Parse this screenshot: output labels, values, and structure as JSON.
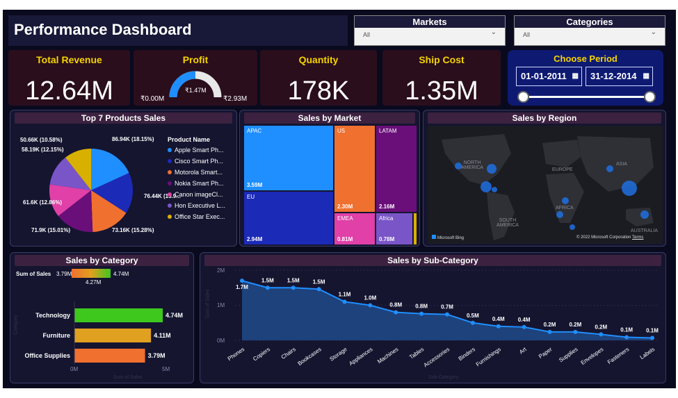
{
  "title": "Performance Dashboard",
  "slicers": {
    "markets": {
      "label": "Markets",
      "value": "All"
    },
    "categories": {
      "label": "Categories",
      "value": "All"
    }
  },
  "kpis": {
    "revenue": {
      "label": "Total Revenue",
      "value": "12.64M"
    },
    "profit": {
      "label": "Profit",
      "min": "₹0.00M",
      "value": "₹1.47M",
      "max": "₹2.93M",
      "fraction": 0.5
    },
    "quantity": {
      "label": "Quantity",
      "value": "178K"
    },
    "shipcost": {
      "label": "Ship Cost",
      "value": "1.35M"
    }
  },
  "period": {
    "label": "Choose Period",
    "start": "01-01-2011",
    "end": "31-12-2014"
  },
  "colors": {
    "accent": "#f5d400",
    "blue": "#1f8fff",
    "navy": "#1c2ab8",
    "orange": "#f07030",
    "purple": "#6a0f7a",
    "pink": "#e040a8",
    "violet": "#7a55c8",
    "gold": "#d8b000"
  },
  "top_products": {
    "title": "Top 7 Products Sales",
    "legend_title": "Product Name",
    "items": [
      {
        "name": "Apple Smart Ph...",
        "value": 86.94,
        "label": "86.94K (18.15%)",
        "color": "#1f8fff"
      },
      {
        "name": "Cisco Smart Ph...",
        "value": 76.44,
        "label": "76.44K (15.9...",
        "color": "#1c2ab8"
      },
      {
        "name": "Motorola Smart...",
        "value": 73.16,
        "label": "73.16K (15.28%)",
        "color": "#f07030"
      },
      {
        "name": "Nokia Smart Ph...",
        "value": 71.9,
        "label": "71.9K (15.01%)",
        "color": "#6a0f7a"
      },
      {
        "name": "Canon imageCl...",
        "value": 61.6,
        "label": "61.6K (12.86%)",
        "color": "#e040a8"
      },
      {
        "name": "Hon Executive L...",
        "value": 58.19,
        "label": "58.19K (12.15%)",
        "color": "#7a55c8"
      },
      {
        "name": "Office Star Exec...",
        "value": 50.66,
        "label": "50.66K (10.58%)",
        "color": "#d8b000"
      }
    ]
  },
  "sales_by_market": {
    "title": "Sales by Market",
    "items": [
      {
        "name": "APAC",
        "value": "3.59M"
      },
      {
        "name": "EU",
        "value": "2.94M"
      },
      {
        "name": "US",
        "value": "2.30M"
      },
      {
        "name": "LATAM",
        "value": "2.16M"
      },
      {
        "name": "EMEA",
        "value": "0.81M"
      },
      {
        "name": "Africa",
        "value": "0.78M"
      }
    ]
  },
  "sales_by_region": {
    "title": "Sales by Region",
    "continents": [
      "NORTH AMERICA",
      "EUROPE",
      "ASIA",
      "AFRICA",
      "SOUTH AMERICA",
      "AUSTRALIA"
    ],
    "credit": "© 2022 Microsoft Corporation",
    "terms": "Terms",
    "bing": "Microsoft Bing"
  },
  "sales_by_category": {
    "title": "Sales by Category",
    "mini": {
      "label": "Sum of Sales",
      "min": "3.79M",
      "mid": "4.27M",
      "max": "4.74M"
    },
    "axis_min": "0M",
    "axis_max": "5M",
    "xlabel": "Sum of Sales",
    "ylabel": "Category"
  },
  "sales_by_subcategory": {
    "title": "Sales by Sub-Category",
    "ylabel": "Sum of Sales",
    "xlabel": "Sub-Category",
    "yticks": [
      "2M",
      "1M",
      "0M"
    ]
  },
  "chart_data": [
    {
      "type": "bar",
      "title": "Sales by Category",
      "categories": [
        "Technology",
        "Furniture",
        "Office Supplies"
      ],
      "values": [
        4.74,
        4.11,
        3.79
      ],
      "labels": [
        "4.74M",
        "4.11M",
        "3.79M"
      ],
      "xlim": [
        0,
        5
      ],
      "colors": [
        "#3ec81e",
        "#e0a020",
        "#f07030"
      ]
    },
    {
      "type": "line",
      "title": "Sales by Sub-Category",
      "x": [
        "Phones",
        "Copiers",
        "Chairs",
        "Bookcases",
        "Storage",
        "Appliances",
        "Machines",
        "Tables",
        "Accessories",
        "Binders",
        "Furnishings",
        "Art",
        "Paper",
        "Supplies",
        "Envelopes",
        "Fasteners",
        "Labels"
      ],
      "values": [
        1.7,
        1.5,
        1.5,
        1.46,
        1.1,
        1.0,
        0.8,
        0.76,
        0.74,
        0.5,
        0.4,
        0.38,
        0.24,
        0.24,
        0.17,
        0.09,
        0.07
      ],
      "labels": [
        "1.7M",
        "1.5M",
        "1.5M",
        "1.5M",
        "1.1M",
        "1.0M",
        "0.8M",
        "0.8M",
        "0.7M",
        "0.5M",
        "0.4M",
        "0.4M",
        "0.2M",
        "0.2M",
        "0.2M",
        "0.1M",
        "0.1M"
      ],
      "ylim": [
        0,
        2
      ]
    }
  ]
}
